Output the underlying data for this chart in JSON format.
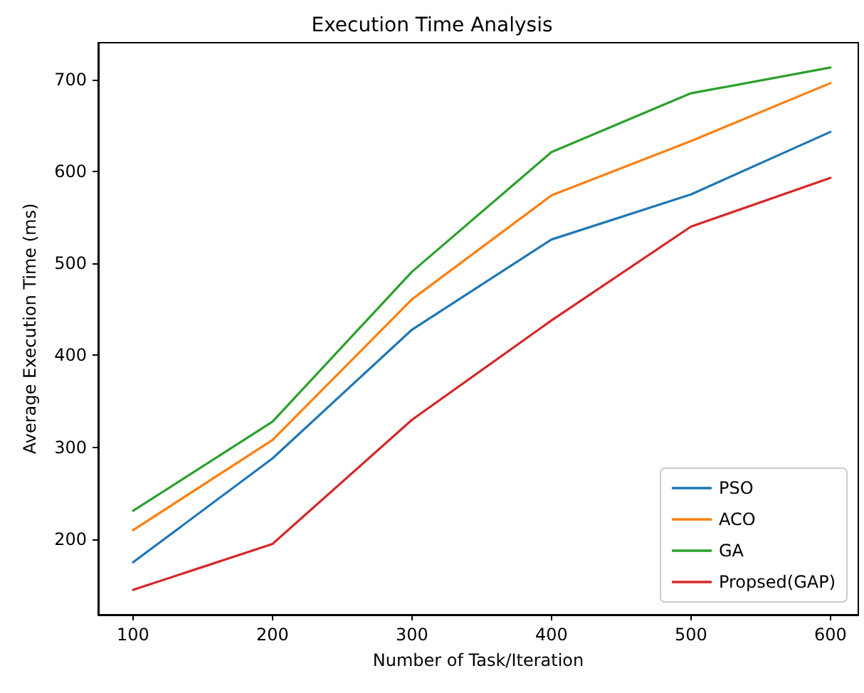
{
  "chart_data": {
    "type": "line",
    "title": "Execution Time Analysis",
    "xlabel": "Number of Task/Iteration",
    "ylabel": "Average Execution Time (ms)",
    "x": [
      100,
      200,
      300,
      400,
      500,
      600
    ],
    "series": [
      {
        "name": "PSO",
        "color": "#1f77b4",
        "values": [
          175,
          288,
          428,
          526,
          575,
          643
        ]
      },
      {
        "name": "ACO",
        "color": "#ff7f0e",
        "values": [
          210,
          308,
          461,
          574,
          633,
          696
        ]
      },
      {
        "name": "GA",
        "color": "#2ca02c",
        "values": [
          231,
          328,
          491,
          621,
          685,
          713
        ]
      },
      {
        "name": "Propsed(GAP)",
        "color": "#d62728",
        "values": [
          145,
          195,
          330,
          438,
          540,
          593
        ]
      }
    ],
    "xlim": [
      75,
      620
    ],
    "xticks": [
      100,
      200,
      300,
      400,
      500,
      600
    ],
    "ylim": [
      118,
      740
    ],
    "yticks": [
      200,
      300,
      400,
      500,
      600,
      700
    ],
    "grid": false,
    "legend": "bottom right",
    "marker": "none",
    "line_style": "solid"
  }
}
